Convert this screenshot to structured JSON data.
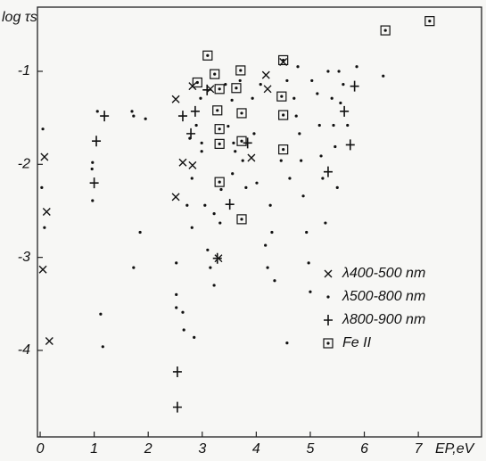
{
  "chart_data": {
    "type": "scatter",
    "ylabel": "log τs",
    "xlabel": "EP,eV",
    "xlim": [
      -0.05,
      8.17
    ],
    "ylim": [
      -4.93,
      -0.31
    ],
    "xticks": [
      0,
      1,
      2,
      3,
      4,
      5,
      6,
      7
    ],
    "yticks": [
      -1,
      -2,
      -3,
      -4
    ],
    "legend": "lower right",
    "series": [
      {
        "name": "λ400-500 nm",
        "marker": "x",
        "color": "#111111",
        "x": [
          0.08,
          0.12,
          0.05,
          0.17,
          2.51,
          2.64,
          2.51,
          2.82,
          2.82,
          3.3,
          3.15,
          3.91,
          4.18,
          4.21,
          4.5
        ],
        "values": [
          -1.92,
          -2.51,
          -3.13,
          -3.9,
          -1.3,
          -1.98,
          -2.35,
          -2.01,
          -1.16,
          -3.01,
          -1.19,
          -1.93,
          -1.04,
          -1.19,
          -0.9
        ]
      },
      {
        "name": "λ500-800 nm",
        "marker": "dot",
        "color": "#111111",
        "x": [
          0.03,
          0.08,
          0.05,
          0.97,
          0.97,
          1.06,
          1.12,
          1.16,
          0.96,
          1.7,
          1.73,
          1.85,
          1.73,
          1.95,
          2.52,
          2.52,
          2.52,
          2.64,
          2.66,
          2.72,
          2.81,
          2.81,
          2.77,
          2.85,
          2.89,
          2.97,
          2.99,
          2.99,
          3.05,
          3.1,
          3.15,
          3.22,
          3.22,
          3.33,
          3.35,
          3.43,
          3.48,
          3.55,
          3.58,
          3.61,
          3.56,
          3.7,
          3.75,
          3.81,
          3.93,
          3.96,
          4.01,
          4.08,
          4.17,
          4.21,
          4.26,
          4.34,
          4.29,
          4.46,
          4.57,
          4.62,
          4.7,
          4.74,
          4.77,
          4.8,
          4.83,
          4.87,
          4.93,
          4.97,
          5.0,
          5.03,
          5.13,
          5.17,
          5.2,
          5.23,
          5.28,
          5.33,
          5.4,
          5.43,
          5.46,
          5.5,
          5.53,
          5.56,
          5.61,
          5.69,
          5.86,
          6.35,
          4.57
        ],
        "values": [
          -2.25,
          -2.68,
          -1.62,
          -1.98,
          -2.39,
          -1.43,
          -3.61,
          -3.96,
          -2.05,
          -1.43,
          -1.48,
          -2.73,
          -3.11,
          -1.51,
          -3.06,
          -3.4,
          -3.54,
          -3.59,
          -3.78,
          -2.44,
          -2.68,
          -2.15,
          -1.72,
          -3.86,
          -1.58,
          -1.29,
          -1.77,
          -1.86,
          -2.44,
          -2.92,
          -3.11,
          -3.3,
          -2.53,
          -2.63,
          -2.27,
          -1.14,
          -1.59,
          -1.31,
          -1.77,
          -1.86,
          -2.1,
          -1.1,
          -1.96,
          -2.25,
          -1.29,
          -1.67,
          -2.2,
          -1.14,
          -2.87,
          -3.11,
          -2.44,
          -3.25,
          -2.73,
          -1.96,
          -1.1,
          -2.15,
          -1.29,
          -1.48,
          -0.95,
          -1.67,
          -1.96,
          -2.34,
          -2.73,
          -3.06,
          -3.37,
          -1.1,
          -1.24,
          -1.58,
          -1.91,
          -2.15,
          -2.63,
          -1.0,
          -1.29,
          -1.58,
          -1.81,
          -2.25,
          -1.0,
          -1.34,
          -1.14,
          -1.58,
          -0.95,
          -1.05,
          -3.92
        ]
      },
      {
        "name": "λ800-900 nm",
        "marker": "plus",
        "color": "#111111",
        "x": [
          1.04,
          1.0,
          1.19,
          2.54,
          2.54,
          2.64,
          2.79,
          2.87,
          3.28,
          3.51,
          3.84,
          5.33,
          5.74,
          5.63,
          5.82,
          3.09
        ],
        "values": [
          -1.75,
          -2.2,
          -1.48,
          -4.23,
          -4.61,
          -1.48,
          -1.67,
          -1.43,
          -3.01,
          -2.43,
          -1.77,
          -2.08,
          -1.79,
          -1.43,
          -1.16,
          -1.2
        ]
      },
      {
        "name": "Fe II",
        "marker": "square-dot",
        "color": "#111111",
        "x": [
          3.1,
          3.23,
          2.91,
          3.32,
          3.28,
          3.32,
          3.32,
          3.32,
          3.71,
          3.63,
          3.73,
          3.73,
          3.73,
          4.5,
          4.47,
          4.5,
          4.5,
          6.39,
          7.21
        ],
        "values": [
          -0.83,
          -1.03,
          -1.12,
          -1.19,
          -1.42,
          -1.62,
          -1.78,
          -2.19,
          -0.99,
          -1.18,
          -1.45,
          -1.75,
          -2.59,
          -0.88,
          -1.27,
          -1.47,
          -1.84,
          -0.56,
          -0.46
        ]
      }
    ]
  }
}
